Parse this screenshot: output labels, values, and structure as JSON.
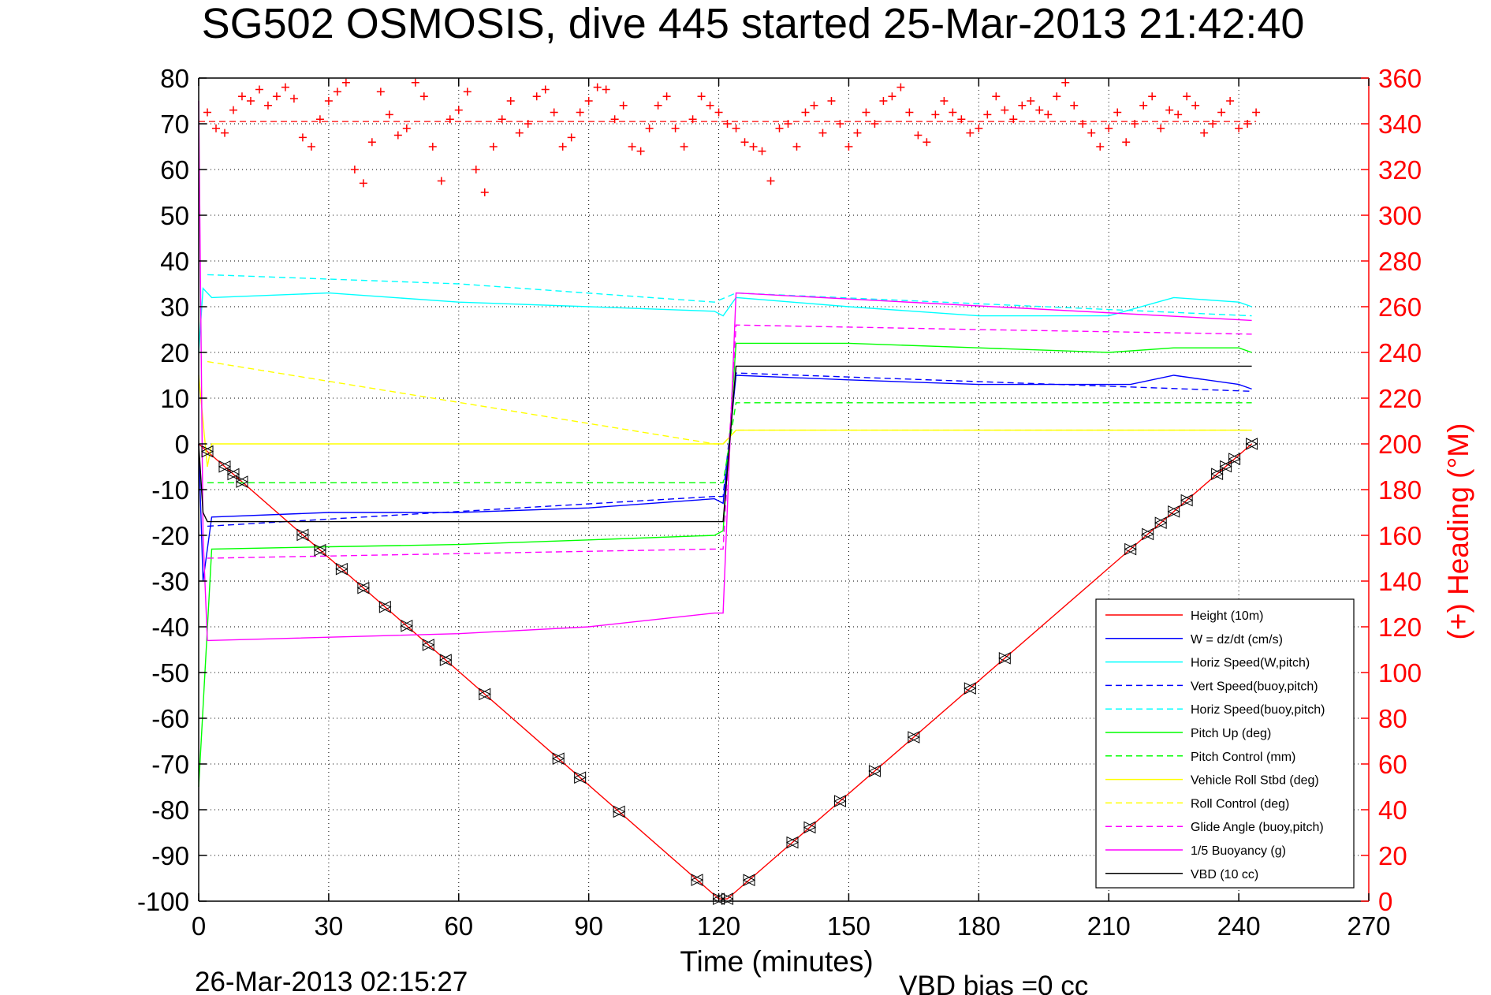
{
  "chart_data": {
    "type": "line",
    "title": "SG502 OSMOSIS, dive 445 started 25-Mar-2013 21:42:40",
    "xlabel": "Time (minutes)",
    "ylabel_right": "(+) Heading (°M)",
    "xlim": [
      0,
      270
    ],
    "ylim": [
      -100,
      80
    ],
    "ylim_right": [
      0,
      360
    ],
    "xticks": [
      "0",
      "30",
      "60",
      "90",
      "120",
      "150",
      "180",
      "210",
      "240",
      "270"
    ],
    "yticks": [
      "80",
      "70",
      "60",
      "50",
      "40",
      "30",
      "20",
      "10",
      "0",
      "-10",
      "-20",
      "-30",
      "-40",
      "-50",
      "-60",
      "-70",
      "-80",
      "-90",
      "-100"
    ],
    "yticks_right": [
      "360",
      "340",
      "320",
      "300",
      "280",
      "260",
      "240",
      "220",
      "200",
      "180",
      "160",
      "140",
      "120",
      "100",
      "80",
      "60",
      "40",
      "20",
      "0"
    ],
    "grid": true,
    "legend_position": "bottom-right",
    "footer_time": "26-Mar-2013 02:15:27",
    "footer_note": "VBD bias =0 cc",
    "series": [
      {
        "name": "Height (10m)",
        "color": "#ff0000",
        "style": "solid",
        "x": [
          0,
          120,
          122,
          243
        ],
        "y": [
          0,
          -99.5,
          -99.5,
          0
        ]
      },
      {
        "name": "W = dz/dt (cm/s)",
        "color": "#0000ff",
        "style": "solid",
        "x": [
          0,
          1,
          3,
          30,
          60,
          90,
          119,
          121,
          124,
          150,
          180,
          215,
          225,
          240,
          243
        ],
        "y": [
          0,
          -30,
          -16,
          -15,
          -15,
          -14,
          -12,
          -13,
          15,
          14,
          13,
          13,
          15,
          13,
          12
        ]
      },
      {
        "name": "Horiz Speed(W,pitch)",
        "color": "#00ffff",
        "style": "solid",
        "x": [
          0,
          1,
          3,
          30,
          60,
          90,
          119,
          121,
          124,
          150,
          180,
          210,
          225,
          240,
          243
        ],
        "y": [
          20,
          34,
          32,
          33,
          31,
          30,
          29,
          28,
          32,
          30,
          28,
          28,
          32,
          31,
          30
        ]
      },
      {
        "name": "Vert Speed(buoy,pitch)",
        "color": "#0000ff",
        "style": "dashed",
        "x": [
          2,
          119,
          121,
          124,
          243
        ],
        "y": [
          -18,
          -11.5,
          -11.5,
          15.5,
          11.5
        ]
      },
      {
        "name": "Horiz Speed(buoy,pitch)",
        "color": "#00ffff",
        "style": "dashed",
        "x": [
          2,
          60,
          119,
          124,
          243
        ],
        "y": [
          37,
          35,
          31,
          33,
          28
        ]
      },
      {
        "name": "Pitch Up (deg)",
        "color": "#00ff00",
        "style": "solid",
        "x": [
          0,
          3,
          30,
          60,
          90,
          119,
          121,
          124,
          150,
          180,
          210,
          225,
          240,
          243
        ],
        "y": [
          -75,
          -23,
          -22.5,
          -22,
          -21,
          -20,
          -19,
          22,
          22,
          21,
          20,
          21,
          21,
          20
        ]
      },
      {
        "name": "Pitch Control (mm)",
        "color": "#00ff00",
        "style": "dashed",
        "x": [
          2,
          119,
          121,
          124,
          243
        ],
        "y": [
          -8.5,
          -8.5,
          -8.5,
          9,
          9
        ]
      },
      {
        "name": "Vehicle Roll Stbd (deg)",
        "color": "#ffff00",
        "style": "solid",
        "x": [
          0,
          2,
          3,
          30,
          60,
          90,
          119,
          121,
          124,
          150,
          180,
          210,
          240,
          243
        ],
        "y": [
          15,
          -5,
          0,
          0,
          0,
          0,
          0,
          0,
          3,
          3,
          3,
          3,
          3,
          3
        ]
      },
      {
        "name": "Roll Control (deg)",
        "color": "#ffff00",
        "style": "dashed",
        "x": [
          2,
          119,
          121,
          124,
          243
        ],
        "y": [
          18,
          0,
          0,
          3,
          3
        ]
      },
      {
        "name": "Glide Angle (buoy,pitch)",
        "color": "#ff00ff",
        "style": "dashed",
        "x": [
          2,
          60,
          119,
          121,
          124,
          180,
          243
        ],
        "y": [
          -25,
          -24,
          -23,
          -23,
          26,
          25,
          24
        ]
      },
      {
        "name": "1/5 Buoyancy (g)",
        "color": "#ff00ff",
        "style": "solid",
        "x": [
          0,
          1,
          2,
          60,
          90,
          119,
          121,
          124,
          243
        ],
        "y": [
          75,
          -20,
          -43,
          -41.5,
          -40,
          -37,
          -37,
          33,
          27
        ]
      },
      {
        "name": "VBD (10 cc)",
        "color": "#000000",
        "style": "solid",
        "x": [
          0,
          1,
          2,
          119,
          121,
          124,
          243
        ],
        "y": [
          0,
          -15,
          -17,
          -17,
          -17,
          17,
          17
        ]
      }
    ],
    "heading_samples": {
      "name": "(+) Heading (°M)",
      "color": "#ff0000",
      "axis": "right",
      "marker": "+",
      "x": [
        2,
        4,
        6,
        8,
        10,
        12,
        14,
        16,
        18,
        20,
        22,
        24,
        26,
        28,
        30,
        32,
        34,
        36,
        38,
        40,
        42,
        44,
        46,
        48,
        50,
        52,
        54,
        56,
        58,
        60,
        62,
        64,
        66,
        68,
        70,
        72,
        74,
        76,
        78,
        80,
        82,
        84,
        86,
        88,
        90,
        92,
        94,
        96,
        98,
        100,
        102,
        104,
        106,
        108,
        110,
        112,
        114,
        116,
        118,
        120,
        122,
        124,
        126,
        128,
        130,
        132,
        134,
        136,
        138,
        140,
        142,
        144,
        146,
        148,
        150,
        152,
        154,
        156,
        158,
        160,
        162,
        164,
        166,
        168,
        170,
        172,
        174,
        176,
        178,
        180,
        182,
        184,
        186,
        188,
        190,
        192,
        194,
        196,
        198,
        200,
        202,
        204,
        206,
        208,
        210,
        212,
        214,
        216,
        218,
        220,
        222,
        224,
        226,
        228,
        230,
        232,
        234,
        236,
        238,
        240,
        242,
        244
      ],
      "y": [
        345,
        338,
        336,
        346,
        352,
        350,
        355,
        348,
        352,
        356,
        351,
        334,
        330,
        342,
        350,
        354,
        358,
        320,
        314,
        332,
        354,
        344,
        335,
        338,
        358,
        352,
        330,
        315,
        342,
        346,
        354,
        320,
        310,
        330,
        342,
        350,
        336,
        340,
        352,
        355,
        345,
        330,
        334,
        345,
        350,
        356,
        355,
        342,
        348,
        330,
        328,
        338,
        348,
        352,
        338,
        330,
        342,
        352,
        348,
        345,
        340,
        338,
        332,
        330,
        328,
        315,
        338,
        340,
        330,
        345,
        348,
        336,
        350,
        340,
        330,
        336,
        345,
        340,
        350,
        352,
        356,
        345,
        335,
        332,
        344,
        350,
        345,
        342,
        336,
        338,
        344,
        352,
        346,
        342,
        348,
        350,
        346,
        344,
        352,
        358,
        348,
        340,
        336,
        330,
        338,
        345,
        332,
        340,
        348,
        352,
        338,
        346,
        344,
        352,
        348,
        336,
        340,
        345,
        350,
        338,
        340,
        345
      ]
    },
    "heading_mean": 341
  }
}
